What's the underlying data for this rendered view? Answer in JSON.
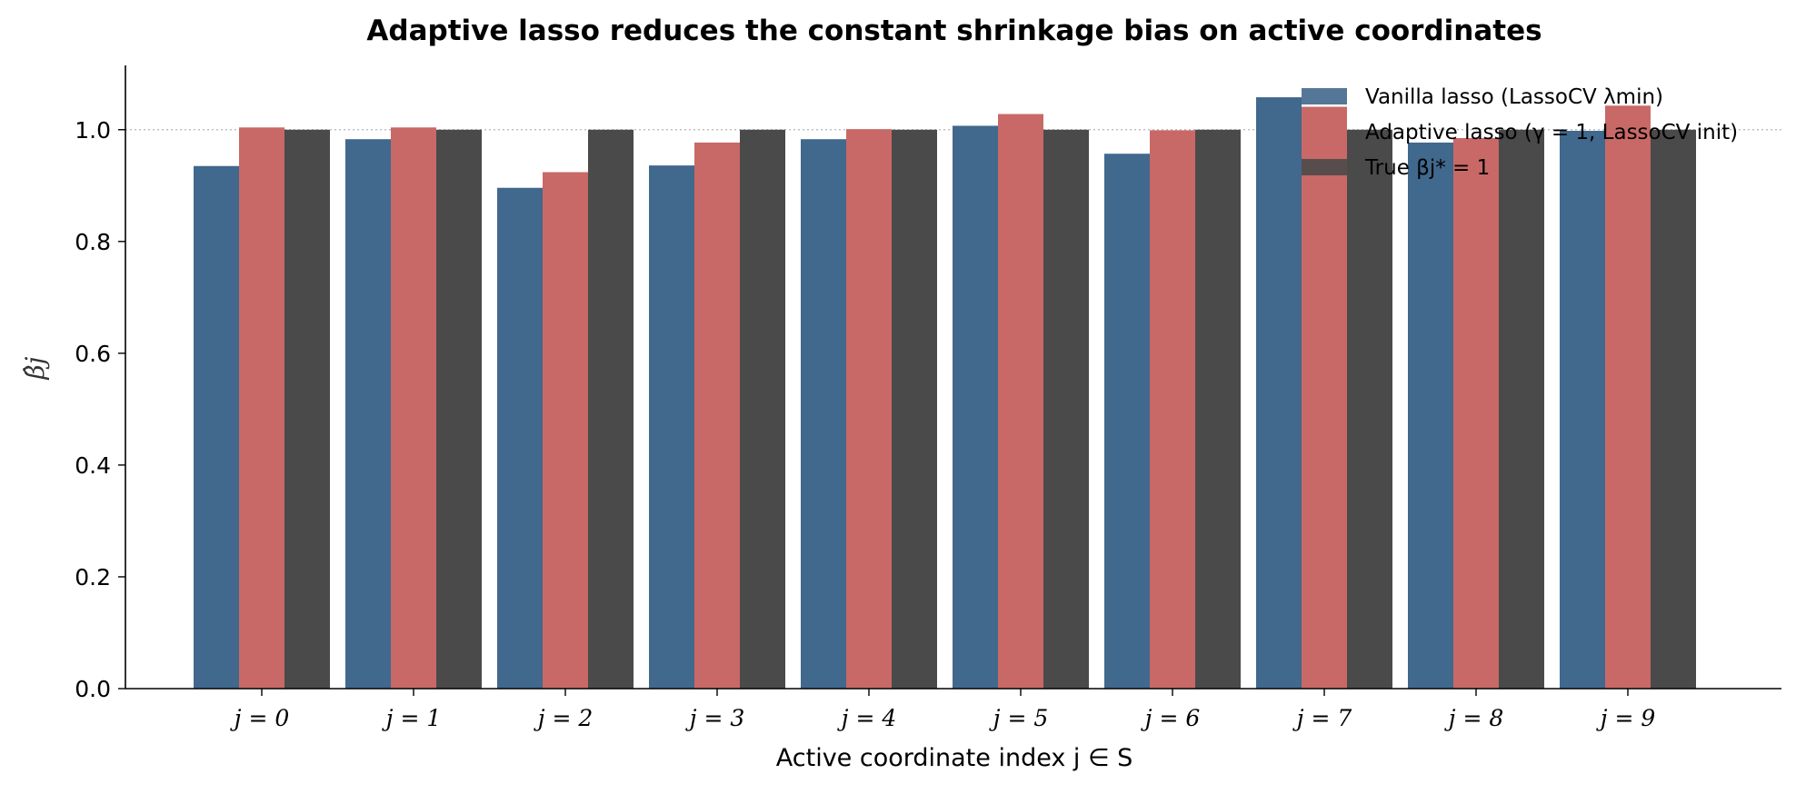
{
  "chart_data": {
    "type": "bar",
    "title": "Adaptive lasso reduces the constant shrinkage bias on active coordinates",
    "xlabel": "Active coordinate index j ∈ S",
    "ylabel": "β̂j",
    "categories": [
      "j = 0",
      "j = 1",
      "j = 2",
      "j = 3",
      "j = 4",
      "j = 5",
      "j = 6",
      "j = 7",
      "j = 8",
      "j = 9"
    ],
    "series": [
      {
        "name": "Vanilla lasso (LassoCV λmin)",
        "color": "#41688d",
        "values": [
          0.935,
          0.983,
          0.896,
          0.936,
          0.983,
          1.007,
          0.957,
          1.058,
          0.977,
          0.998
        ]
      },
      {
        "name": "Adaptive lasso (γ = 1, LassoCV init)",
        "color": "#c86967",
        "values": [
          1.004,
          1.004,
          0.924,
          0.977,
          1.001,
          1.028,
          0.999,
          1.041,
          0.985,
          1.043
        ]
      },
      {
        "name": "True βj* = 1",
        "color": "#4a4a4a",
        "values": [
          1.0,
          1.0,
          1.0,
          1.0,
          1.0,
          1.0,
          1.0,
          1.0,
          1.0,
          1.0
        ]
      }
    ],
    "ylim": [
      0,
      1.115
    ],
    "yticks": [
      0.0,
      0.2,
      0.4,
      0.6,
      0.8,
      1.0
    ],
    "ytick_labels": [
      "0.0",
      "0.2",
      "0.4",
      "0.6",
      "0.8",
      "1.0"
    ],
    "reference_line": 1.0,
    "grid": false,
    "legend_position": "top-right"
  }
}
